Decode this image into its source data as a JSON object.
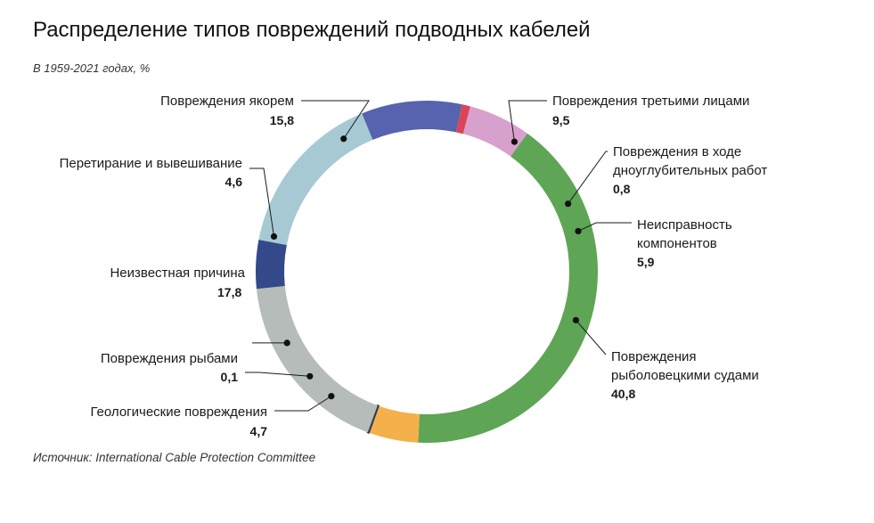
{
  "title": "Распределение типов повреждений подводных кабелей",
  "subtitle": "В 1959-2021 годах, %",
  "source": "Источник: International Cable Protection Committee",
  "chart_data": {
    "type": "pie",
    "variant": "donut",
    "title": "Распределение типов повреждений подводных кабелей",
    "subtitle": "В 1959-2021 годах, %",
    "series": [
      {
        "name": "Повреждения третьими лицами",
        "label_lines": [
          "Повреждения третьими лицами"
        ],
        "value": 9.5,
        "value_label": "9,5",
        "color": "#5763ae"
      },
      {
        "name": "Повреждения в ходе дноуглубительных работ",
        "label_lines": [
          "Повреждения в ходе",
          "дноуглубительных работ"
        ],
        "value": 0.8,
        "value_label": "0,8",
        "color": "#d94556"
      },
      {
        "name": "Неисправность компонентов",
        "label_lines": [
          "Неисправность",
          "компонентов"
        ],
        "value": 5.9,
        "value_label": "5,9",
        "color": "#d8a0cc"
      },
      {
        "name": "Повреждения рыболовецкими судами",
        "label_lines": [
          "Повреждения",
          "рыболовецкими судами"
        ],
        "value": 40.8,
        "value_label": "40,8",
        "color": "#5ea555"
      },
      {
        "name": "Геологические повреждения",
        "label_lines": [
          "Геологические повреждения"
        ],
        "value": 4.7,
        "value_label": "4,7",
        "color": "#f4b04a"
      },
      {
        "name": "Повреждения рыбами",
        "label_lines": [
          "Повреждения рыбами"
        ],
        "value": 0.1,
        "value_label": "0,1",
        "color": "#2d3a4a"
      },
      {
        "name": "Неизвестная причина",
        "label_lines": [
          "Неизвестная причина"
        ],
        "value": 17.8,
        "value_label": "17,8",
        "color": "#b6bcba"
      },
      {
        "name": "Перетирание и вывешивание",
        "label_lines": [
          "Перетирание и вывешивание"
        ],
        "value": 4.6,
        "value_label": "4,6",
        "color": "#34498a"
      },
      {
        "name": "Повреждения якорем",
        "label_lines": [
          "Повреждения якорем"
        ],
        "value": 15.8,
        "value_label": "15,8",
        "color": "#a7c9d4"
      }
    ]
  }
}
